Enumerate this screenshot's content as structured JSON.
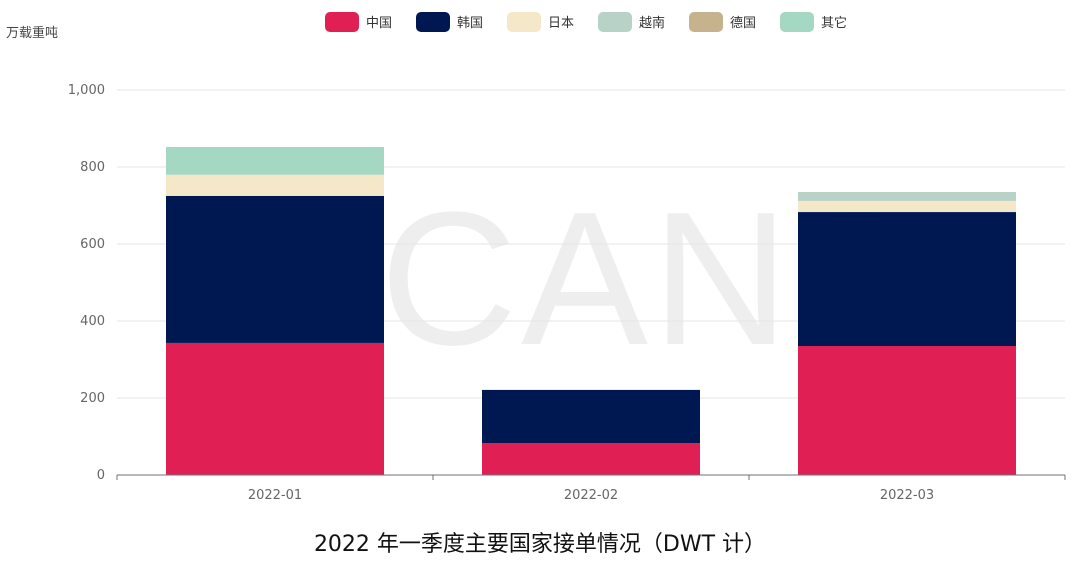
{
  "chart_data": {
    "type": "bar",
    "stacked": true,
    "title": "2022 年一季度主要国家接单情况（DWT 计）",
    "ylabel": "万载重吨",
    "xlabel": "",
    "categories": [
      "2022-01",
      "2022-02",
      "2022-03"
    ],
    "ylim": [
      0,
      1000
    ],
    "yticks": [
      "0",
      "200",
      "400",
      "600",
      "800",
      "1,000"
    ],
    "ytick_values": [
      0,
      200,
      400,
      600,
      800,
      1000
    ],
    "grid": true,
    "legend_position": "top",
    "watermark": "CANS",
    "series": [
      {
        "name": "中国",
        "color": "#e01f54",
        "values": [
          343,
          83,
          335
        ]
      },
      {
        "name": "韩国",
        "color": "#001852",
        "values": [
          382,
          138,
          348
        ]
      },
      {
        "name": "日本",
        "color": "#f5e8c8",
        "values": [
          55,
          0,
          29
        ]
      },
      {
        "name": "越南",
        "color": "#b8d2c7",
        "values": [
          0,
          0,
          23
        ]
      },
      {
        "name": "德国",
        "color": "#c6b38e",
        "values": [
          0,
          0,
          0
        ]
      },
      {
        "name": "其它",
        "color": "#a4d8c2",
        "values": [
          72,
          0,
          0
        ]
      }
    ]
  }
}
